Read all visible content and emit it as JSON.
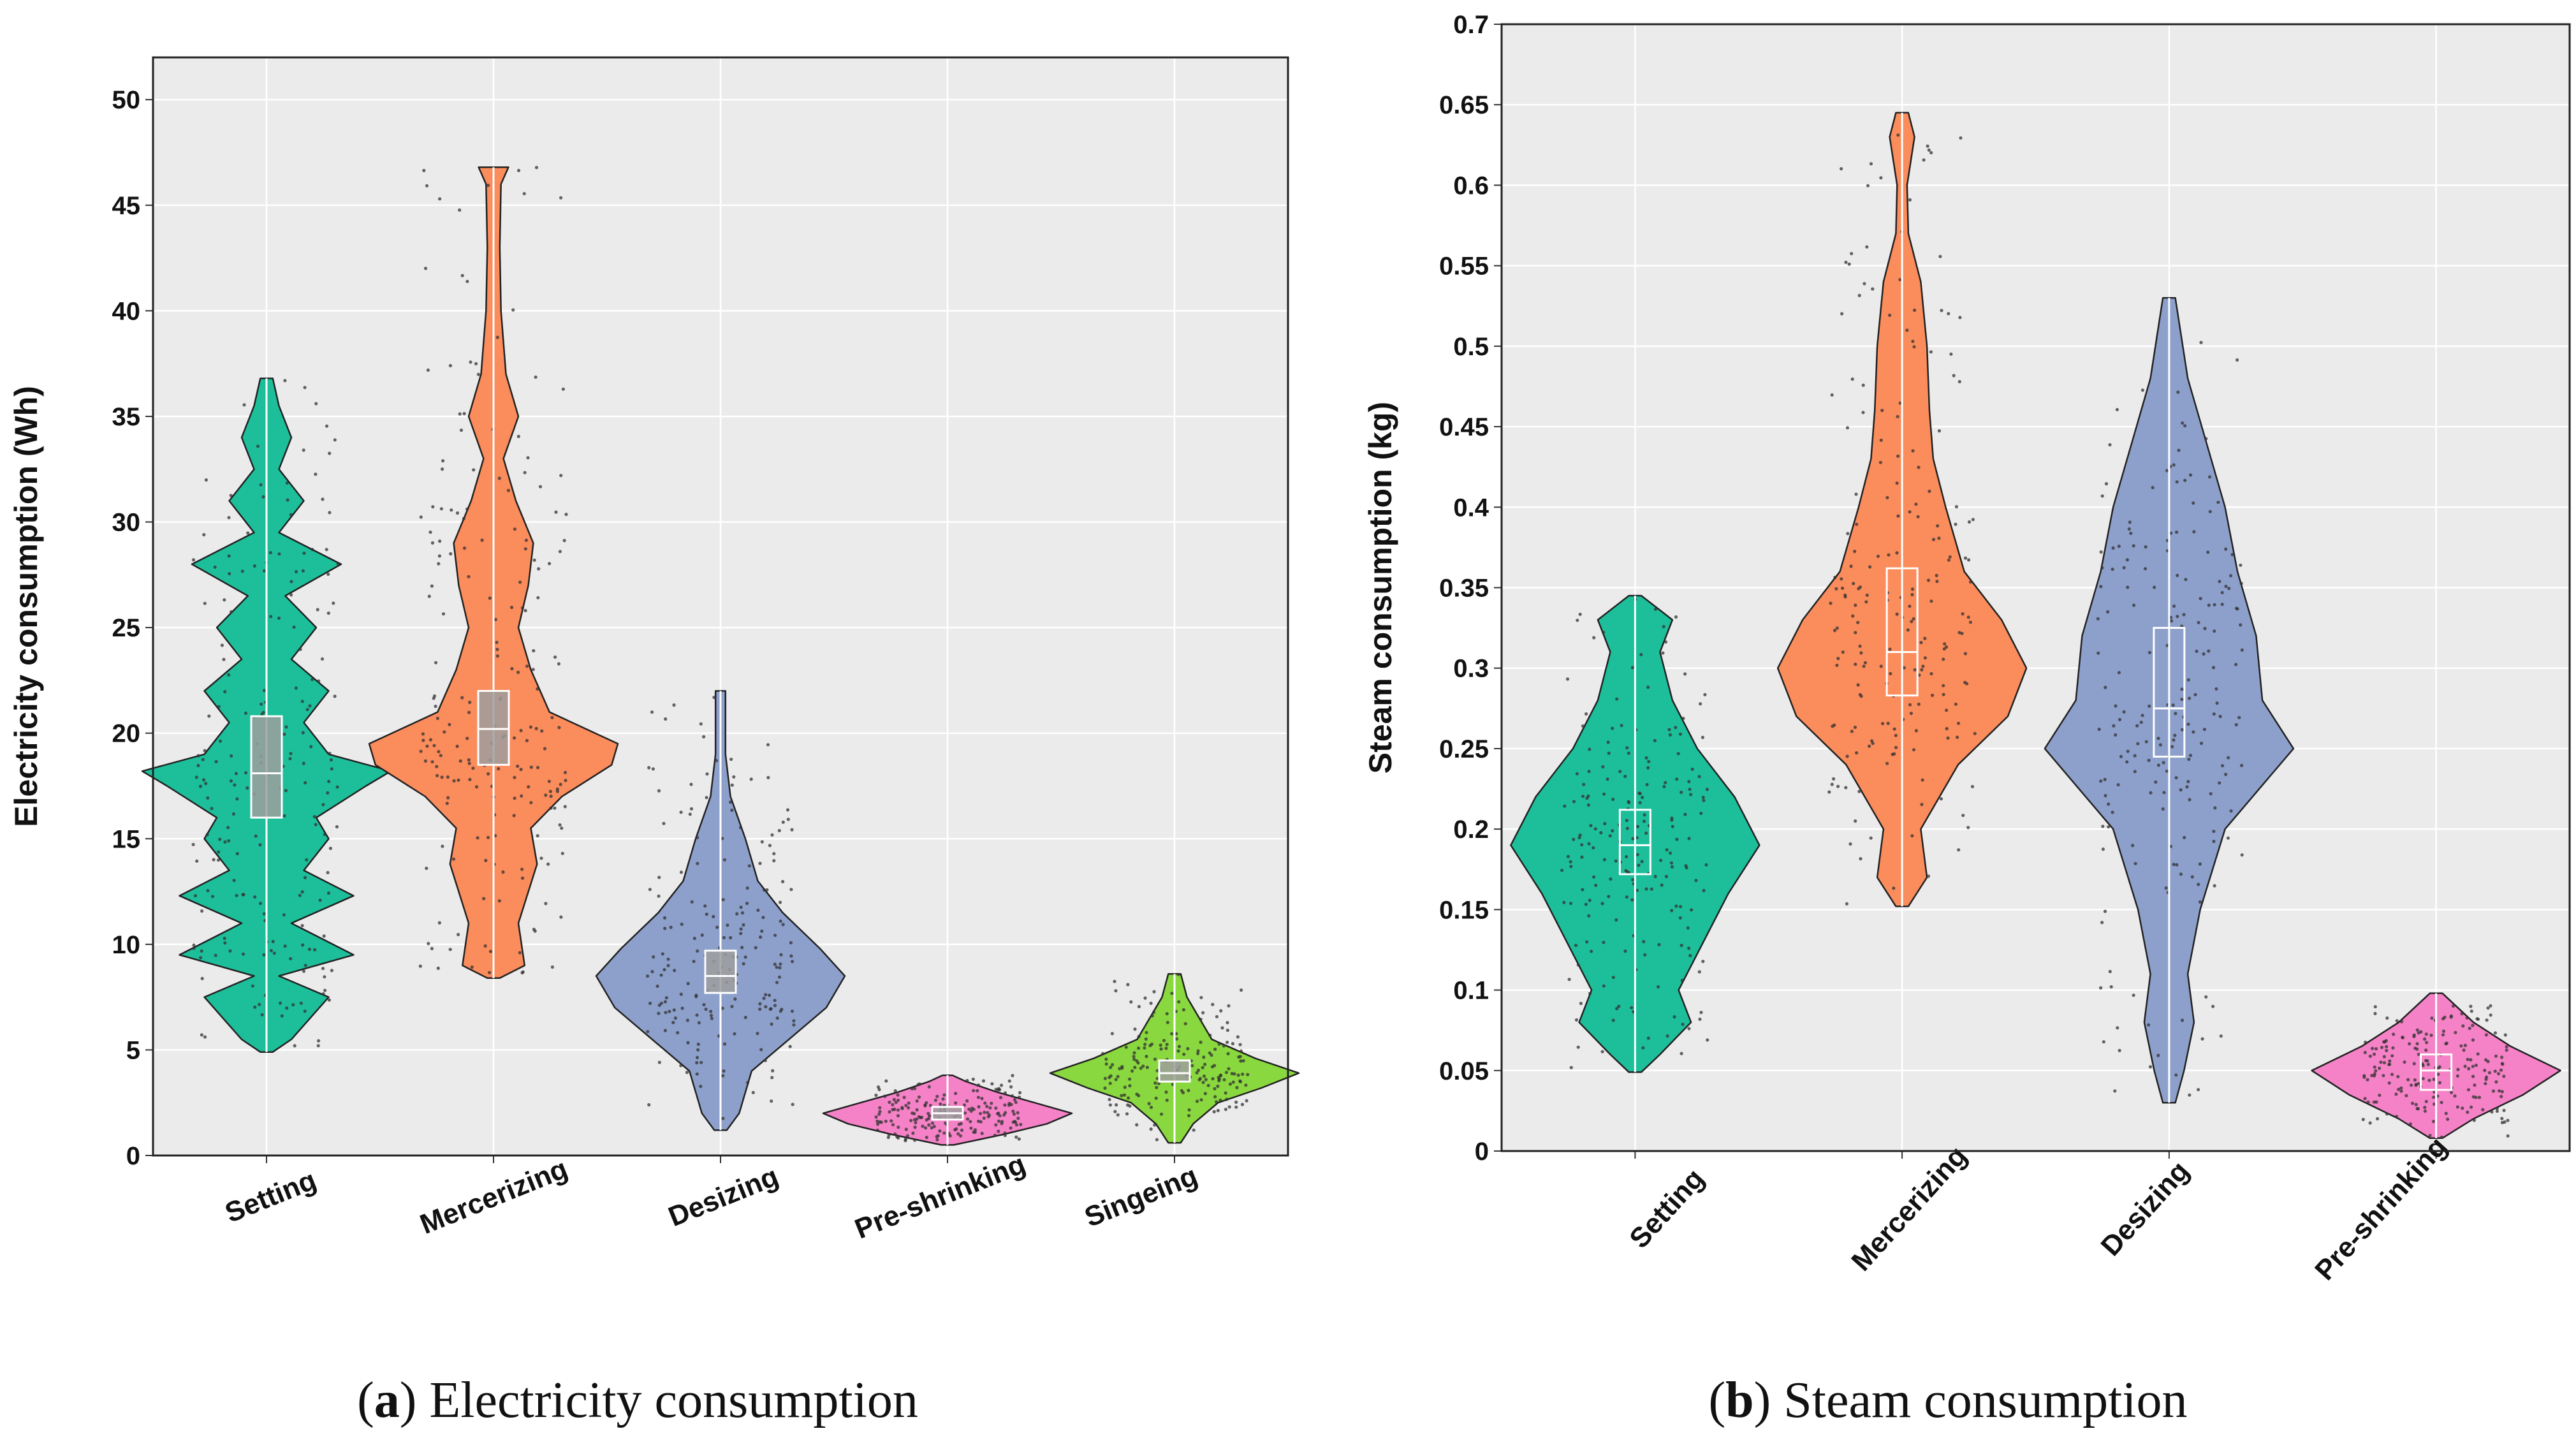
{
  "figure": {
    "panels": [
      {
        "letter": "a",
        "caption": "Electricity consumption"
      },
      {
        "letter": "b",
        "caption": "Steam consumption"
      }
    ]
  },
  "chart_data": [
    {
      "type": "violin",
      "title": "Electricity consumption",
      "xlabel": "",
      "ylabel": "Electricity consumption (Wh)",
      "ylim": [
        0,
        52
      ],
      "yticks": [
        0,
        5,
        10,
        15,
        20,
        25,
        30,
        35,
        40,
        45,
        50
      ],
      "grid": true,
      "categories": [
        "Setting",
        "Mercerizing",
        "Desizing",
        "Pre-shrinking",
        "Singeing"
      ],
      "colors": [
        "#1dbf9b",
        "#fb8c5c",
        "#8da0cb",
        "#f582c7",
        "#8ad83f"
      ],
      "series": [
        {
          "name": "Setting",
          "min": 4.9,
          "q1": 16.0,
          "median": 18.1,
          "q3": 20.8,
          "max": 36.8,
          "density": [
            [
              4.9,
              0.05
            ],
            [
              5.5,
              0.2
            ],
            [
              7.5,
              0.5
            ],
            [
              8.5,
              0.1
            ],
            [
              9.5,
              0.7
            ],
            [
              11.0,
              0.2
            ],
            [
              12.3,
              0.7
            ],
            [
              13.5,
              0.3
            ],
            [
              15.0,
              0.5
            ],
            [
              16.0,
              0.4
            ],
            [
              17.5,
              0.8
            ],
            [
              18.2,
              1.0
            ],
            [
              19.0,
              0.5
            ],
            [
              20.5,
              0.3
            ],
            [
              22.0,
              0.5
            ],
            [
              23.5,
              0.2
            ],
            [
              25.0,
              0.4
            ],
            [
              26.5,
              0.15
            ],
            [
              28.0,
              0.6
            ],
            [
              29.5,
              0.1
            ],
            [
              31.0,
              0.3
            ],
            [
              32.5,
              0.1
            ],
            [
              34.0,
              0.2
            ],
            [
              35.5,
              0.1
            ],
            [
              36.8,
              0.05
            ]
          ]
        },
        {
          "name": "Mercerizing",
          "min": 8.4,
          "q1": 18.5,
          "median": 20.2,
          "q3": 22.0,
          "max": 46.8,
          "density": [
            [
              8.4,
              0.05
            ],
            [
              9.0,
              0.25
            ],
            [
              11.0,
              0.2
            ],
            [
              13.8,
              0.35
            ],
            [
              15.5,
              0.3
            ],
            [
              17.0,
              0.55
            ],
            [
              18.5,
              0.95
            ],
            [
              19.5,
              1.0
            ],
            [
              21.0,
              0.45
            ],
            [
              23.0,
              0.3
            ],
            [
              25.0,
              0.2
            ],
            [
              27.0,
              0.28
            ],
            [
              29.0,
              0.32
            ],
            [
              31.0,
              0.18
            ],
            [
              33.0,
              0.08
            ],
            [
              35.0,
              0.2
            ],
            [
              37.0,
              0.1
            ],
            [
              40.0,
              0.06
            ],
            [
              43.0,
              0.05
            ],
            [
              46.0,
              0.06
            ],
            [
              46.8,
              0.12
            ]
          ]
        },
        {
          "name": "Desizing",
          "min": 1.2,
          "q1": 7.7,
          "median": 8.5,
          "q3": 9.7,
          "max": 22.0,
          "density": [
            [
              1.2,
              0.05
            ],
            [
              2.0,
              0.15
            ],
            [
              4.0,
              0.25
            ],
            [
              5.5,
              0.55
            ],
            [
              7.0,
              0.85
            ],
            [
              8.5,
              1.0
            ],
            [
              9.8,
              0.8
            ],
            [
              11.5,
              0.5
            ],
            [
              13.0,
              0.3
            ],
            [
              15.0,
              0.2
            ],
            [
              17.0,
              0.08
            ],
            [
              19.0,
              0.04
            ],
            [
              22.0,
              0.04
            ]
          ]
        },
        {
          "name": "Pre-shrinking",
          "min": 0.5,
          "q1": 1.7,
          "median": 2.0,
          "q3": 2.3,
          "max": 3.8,
          "density": [
            [
              0.5,
              0.05
            ],
            [
              1.0,
              0.45
            ],
            [
              1.5,
              0.8
            ],
            [
              2.0,
              1.0
            ],
            [
              2.5,
              0.7
            ],
            [
              3.0,
              0.4
            ],
            [
              3.5,
              0.15
            ],
            [
              3.8,
              0.04
            ]
          ]
        },
        {
          "name": "Singeing",
          "min": 0.6,
          "q1": 3.5,
          "median": 3.9,
          "q3": 4.5,
          "max": 8.6,
          "density": [
            [
              0.6,
              0.05
            ],
            [
              1.5,
              0.15
            ],
            [
              2.5,
              0.35
            ],
            [
              3.2,
              0.7
            ],
            [
              3.9,
              1.0
            ],
            [
              4.6,
              0.65
            ],
            [
              5.5,
              0.3
            ],
            [
              6.5,
              0.2
            ],
            [
              7.5,
              0.1
            ],
            [
              8.6,
              0.05
            ]
          ]
        }
      ]
    },
    {
      "type": "violin",
      "title": "Steam consumption",
      "xlabel": "",
      "ylabel": "Steam consumption (kg)",
      "ylim": [
        0,
        0.7
      ],
      "yticks": [
        0,
        0.05,
        0.1,
        0.15,
        0.2,
        0.25,
        0.3,
        0.35,
        0.4,
        0.45,
        0.5,
        0.55,
        0.6,
        0.65,
        0.7
      ],
      "grid": true,
      "categories": [
        "Setting",
        "Mercerizing",
        "Desizing",
        "Pre-shrinking"
      ],
      "colors": [
        "#1dbf9b",
        "#fb8c5c",
        "#8da0cb",
        "#f582c7"
      ],
      "series": [
        {
          "name": "Setting",
          "min": 0.049,
          "q1": 0.172,
          "median": 0.19,
          "q3": 0.212,
          "max": 0.345,
          "density": [
            [
              0.049,
              0.05
            ],
            [
              0.06,
              0.2
            ],
            [
              0.08,
              0.45
            ],
            [
              0.1,
              0.35
            ],
            [
              0.13,
              0.55
            ],
            [
              0.16,
              0.75
            ],
            [
              0.19,
              1.0
            ],
            [
              0.22,
              0.8
            ],
            [
              0.25,
              0.5
            ],
            [
              0.28,
              0.3
            ],
            [
              0.31,
              0.2
            ],
            [
              0.33,
              0.3
            ],
            [
              0.345,
              0.05
            ]
          ]
        },
        {
          "name": "Mercerizing",
          "min": 0.152,
          "q1": 0.283,
          "median": 0.31,
          "q3": 0.362,
          "max": 0.645,
          "density": [
            [
              0.152,
              0.05
            ],
            [
              0.17,
              0.2
            ],
            [
              0.2,
              0.15
            ],
            [
              0.24,
              0.45
            ],
            [
              0.27,
              0.85
            ],
            [
              0.3,
              1.0
            ],
            [
              0.33,
              0.8
            ],
            [
              0.36,
              0.5
            ],
            [
              0.4,
              0.35
            ],
            [
              0.43,
              0.25
            ],
            [
              0.46,
              0.22
            ],
            [
              0.5,
              0.2
            ],
            [
              0.54,
              0.15
            ],
            [
              0.57,
              0.05
            ],
            [
              0.6,
              0.04
            ],
            [
              0.63,
              0.1
            ],
            [
              0.645,
              0.05
            ]
          ]
        },
        {
          "name": "Desizing",
          "min": 0.03,
          "q1": 0.245,
          "median": 0.275,
          "q3": 0.325,
          "max": 0.53,
          "density": [
            [
              0.03,
              0.05
            ],
            [
              0.05,
              0.12
            ],
            [
              0.08,
              0.2
            ],
            [
              0.11,
              0.15
            ],
            [
              0.15,
              0.25
            ],
            [
              0.2,
              0.45
            ],
            [
              0.25,
              1.0
            ],
            [
              0.28,
              0.75
            ],
            [
              0.32,
              0.7
            ],
            [
              0.36,
              0.55
            ],
            [
              0.4,
              0.45
            ],
            [
              0.44,
              0.3
            ],
            [
              0.48,
              0.15
            ],
            [
              0.53,
              0.05
            ]
          ]
        },
        {
          "name": "Pre-shrinking",
          "min": 0.008,
          "q1": 0.038,
          "median": 0.05,
          "q3": 0.06,
          "max": 0.098,
          "density": [
            [
              0.008,
              0.05
            ],
            [
              0.02,
              0.3
            ],
            [
              0.035,
              0.7
            ],
            [
              0.05,
              1.0
            ],
            [
              0.065,
              0.6
            ],
            [
              0.08,
              0.3
            ],
            [
              0.098,
              0.05
            ]
          ]
        }
      ]
    }
  ]
}
